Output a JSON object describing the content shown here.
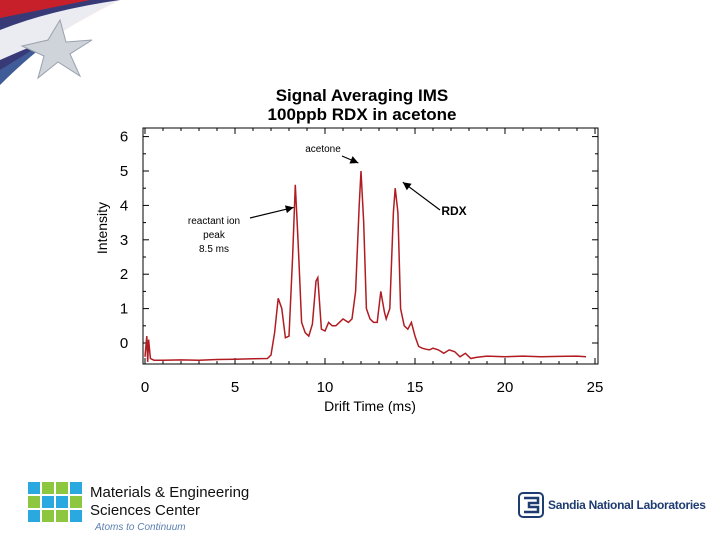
{
  "footer": {
    "org_line1": "Materials & Engineering",
    "org_line2": "Sciences Center",
    "tagline": "Atoms to Continuum",
    "lab_name": "Sandia National Laboratories"
  },
  "colors": {
    "trace": "#b01c22",
    "axis": "#000000",
    "banner_red": "#c8202a",
    "banner_blue": "#1f3f86",
    "logo_blue": "#1f3c72",
    "logo_green": "#8dc63f",
    "logo_cyan": "#29a9df"
  },
  "chart_data": {
    "type": "line",
    "title": "Signal Averaging IMS",
    "subtitle": "100ppb RDX in acetone",
    "xlabel": "Drift Time (ms)",
    "ylabel": "Intensity",
    "xlim": [
      0,
      25
    ],
    "ylim": [
      -0.7,
      6
    ],
    "x_ticks": [
      0,
      5,
      10,
      15,
      20,
      25
    ],
    "y_ticks": [
      0,
      1,
      2,
      3,
      4,
      5,
      6
    ],
    "grid": false,
    "series": [
      {
        "x": [
          0,
          0.1,
          0.15,
          0.2,
          0.3,
          0.5,
          1,
          2,
          3,
          4,
          5,
          6,
          6.8,
          7.0,
          7.2,
          7.4,
          7.6,
          7.8,
          8.0,
          8.2,
          8.35,
          8.5,
          8.7,
          8.9,
          9.1,
          9.3,
          9.5,
          9.6,
          9.8,
          10.0,
          10.2,
          10.4,
          10.6,
          10.8,
          11.0,
          11.3,
          11.5,
          11.7,
          11.9,
          12.0,
          12.15,
          12.3,
          12.5,
          12.7,
          12.9,
          13.1,
          13.3,
          13.4,
          13.6,
          13.8,
          13.9,
          14.05,
          14.2,
          14.4,
          14.6,
          14.8,
          15.0,
          15.2,
          15.4,
          15.6,
          15.8,
          16.0,
          16.3,
          16.6,
          16.9,
          17.2,
          17.5,
          17.8,
          18.1,
          18.4,
          18.7,
          19,
          20,
          21,
          22,
          23,
          24,
          24.5
        ],
        "y": [
          -0.4,
          0.2,
          -0.55,
          0.1,
          -0.45,
          -0.5,
          -0.5,
          -0.49,
          -0.5,
          -0.48,
          -0.47,
          -0.46,
          -0.45,
          -0.35,
          0.3,
          1.3,
          1.0,
          0.15,
          0.2,
          2.5,
          4.6,
          3.0,
          0.6,
          0.3,
          0.2,
          0.55,
          1.8,
          1.9,
          0.4,
          0.35,
          0.6,
          0.5,
          0.5,
          0.6,
          0.7,
          0.6,
          0.7,
          1.5,
          4.0,
          5.0,
          3.5,
          1.0,
          0.7,
          0.6,
          0.6,
          1.5,
          0.9,
          0.7,
          1.0,
          3.8,
          4.5,
          3.8,
          1.0,
          0.5,
          0.4,
          0.6,
          0.2,
          -0.1,
          -0.15,
          -0.18,
          -0.2,
          -0.15,
          -0.2,
          -0.3,
          -0.2,
          -0.25,
          -0.4,
          -0.3,
          -0.45,
          -0.42,
          -0.4,
          -0.38,
          -0.4,
          -0.38,
          -0.4,
          -0.39,
          -0.38,
          -0.4
        ]
      }
    ],
    "annotations": [
      {
        "text": "acetone",
        "x": 11.8,
        "y": 5.0
      },
      {
        "text": "RDX",
        "x": 14.1,
        "y": 4.5
      },
      {
        "text": "reactant ion",
        "x": 8.15,
        "y": 4.0
      },
      {
        "text": "peak",
        "x": 8.15,
        "y": 4.0
      },
      {
        "text": "8.5 ms",
        "x": 8.15,
        "y": 4.0
      }
    ]
  }
}
